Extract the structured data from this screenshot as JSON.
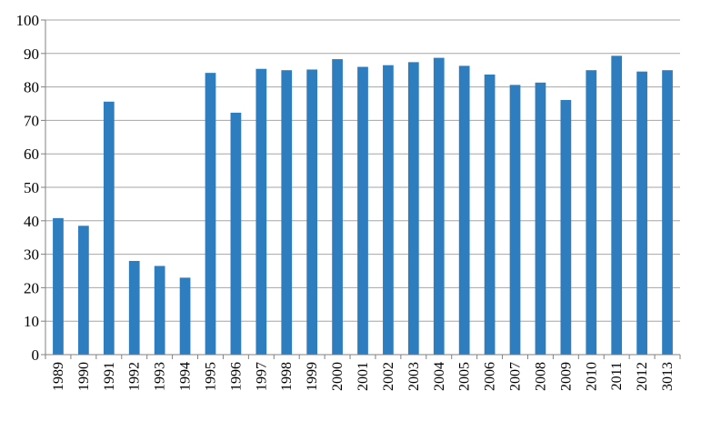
{
  "chart_data": {
    "type": "bar",
    "title": "",
    "xlabel": "",
    "ylabel": "",
    "ylim": [
      0,
      100
    ],
    "ytick_step": 10,
    "grid": true,
    "bar_color": "#2E7DBF",
    "grid_color": "#a6a6a6",
    "categories": [
      "1989",
      "1990",
      "1991",
      "1992",
      "1993",
      "1994",
      "1995",
      "1996",
      "1997",
      "1998",
      "1999",
      "2000",
      "2001",
      "2002",
      "2003",
      "2004",
      "2005",
      "2006",
      "2007",
      "2008",
      "2009",
      "2010",
      "2011",
      "2012",
      "3013"
    ],
    "values": [
      40.8,
      38.5,
      75.6,
      28.0,
      26.5,
      23.0,
      84.2,
      72.3,
      85.4,
      85.0,
      85.2,
      88.3,
      86.0,
      86.5,
      87.4,
      88.7,
      86.3,
      83.7,
      80.6,
      81.3,
      76.1,
      85.0,
      89.3,
      84.6,
      85.0
    ]
  }
}
